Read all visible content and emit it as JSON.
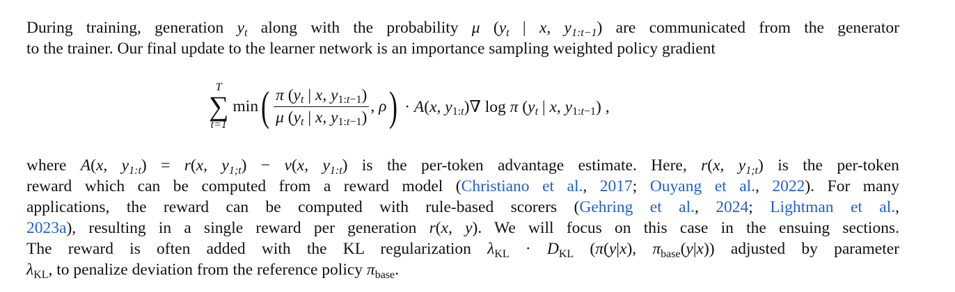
{
  "colors": {
    "text": "#111111",
    "citation": "#1f5fd6"
  },
  "paragraph1": [
    [
      {
        "t": "During training, generation "
      },
      {
        "m": "y"
      },
      {
        "s": "t"
      },
      {
        "t": " along with the probability "
      },
      {
        "m": "μ"
      },
      {
        "t": " ("
      },
      {
        "m": "y"
      },
      {
        "s": "t"
      },
      {
        "t": " | "
      },
      {
        "m": "x, y"
      },
      {
        "s": "1:t−1"
      },
      {
        "t": ") are communicated from the generator"
      }
    ],
    [
      {
        "t": "to the trainer.  Our final update to the learner network is an importance sampling weighted policy gradient"
      }
    ]
  ],
  "equation": {
    "sum_upper": "T",
    "sum_symbol": "∑",
    "sum_lower": "t=1",
    "min": "min",
    "numerator": "π (y_t | x, y_1:t−1)",
    "denominator": "μ (y_t | x, y_1:t−1)",
    "rho": "ρ",
    "rest": "· A(x, y_1:t)∇ log π (y_t | x, y_1:t−1) ,"
  },
  "paragraph2": [
    [
      {
        "t": "where "
      },
      {
        "m": "A"
      },
      {
        "t": "("
      },
      {
        "m": "x, y"
      },
      {
        "s": "1:t"
      },
      {
        "t": ") = "
      },
      {
        "m": "r"
      },
      {
        "t": "("
      },
      {
        "m": "x, y"
      },
      {
        "s": "1;t"
      },
      {
        "t": ") − "
      },
      {
        "m": "v"
      },
      {
        "t": "("
      },
      {
        "m": "x, y"
      },
      {
        "s": "1:t"
      },
      {
        "t": ") is the per-token advantage estimate.  Here, "
      },
      {
        "m": "r"
      },
      {
        "t": "("
      },
      {
        "m": "x, y"
      },
      {
        "s": "1;t"
      },
      {
        "t": ") is the per-token"
      }
    ],
    [
      {
        "t": "reward which can be computed from a reward model ("
      },
      {
        "c": "Christiano et al."
      },
      {
        "t": ", "
      },
      {
        "c": "2017"
      },
      {
        "t": "; "
      },
      {
        "c": "Ouyang et al."
      },
      {
        "t": ", "
      },
      {
        "c": "2022"
      },
      {
        "t": ").  For many"
      }
    ],
    [
      {
        "t": "applications, the reward can be computed with rule-based scorers ("
      },
      {
        "c": "Gehring et al."
      },
      {
        "t": ", "
      },
      {
        "c": "2024"
      },
      {
        "t": "; "
      },
      {
        "c": "Lightman et al."
      },
      {
        "t": ","
      }
    ],
    [
      {
        "c": "2023a"
      },
      {
        "t": "), resulting in a single reward per generation "
      },
      {
        "m": "r"
      },
      {
        "t": "("
      },
      {
        "m": "x, y"
      },
      {
        "t": "). We will focus on this case in the ensuing sections."
      }
    ],
    [
      {
        "t": "The reward is often added with the KL regularization "
      },
      {
        "m": "λ"
      },
      {
        "s": "KL"
      },
      {
        "t": " · "
      },
      {
        "m": "D"
      },
      {
        "s": "KL"
      },
      {
        "t": " ("
      },
      {
        "m": "π"
      },
      {
        "t": "("
      },
      {
        "m": "y"
      },
      {
        "t": "|"
      },
      {
        "m": "x"
      },
      {
        "t": "), "
      },
      {
        "m": "π"
      },
      {
        "s": "base"
      },
      {
        "t": "("
      },
      {
        "m": "y"
      },
      {
        "t": "|"
      },
      {
        "m": "x"
      },
      {
        "t": ")) adjusted by parameter"
      }
    ],
    [
      {
        "m": "λ"
      },
      {
        "s": "KL"
      },
      {
        "t": ", to penalize deviation from the reference policy "
      },
      {
        "m": "π"
      },
      {
        "s": "base"
      },
      {
        "t": "."
      }
    ]
  ]
}
